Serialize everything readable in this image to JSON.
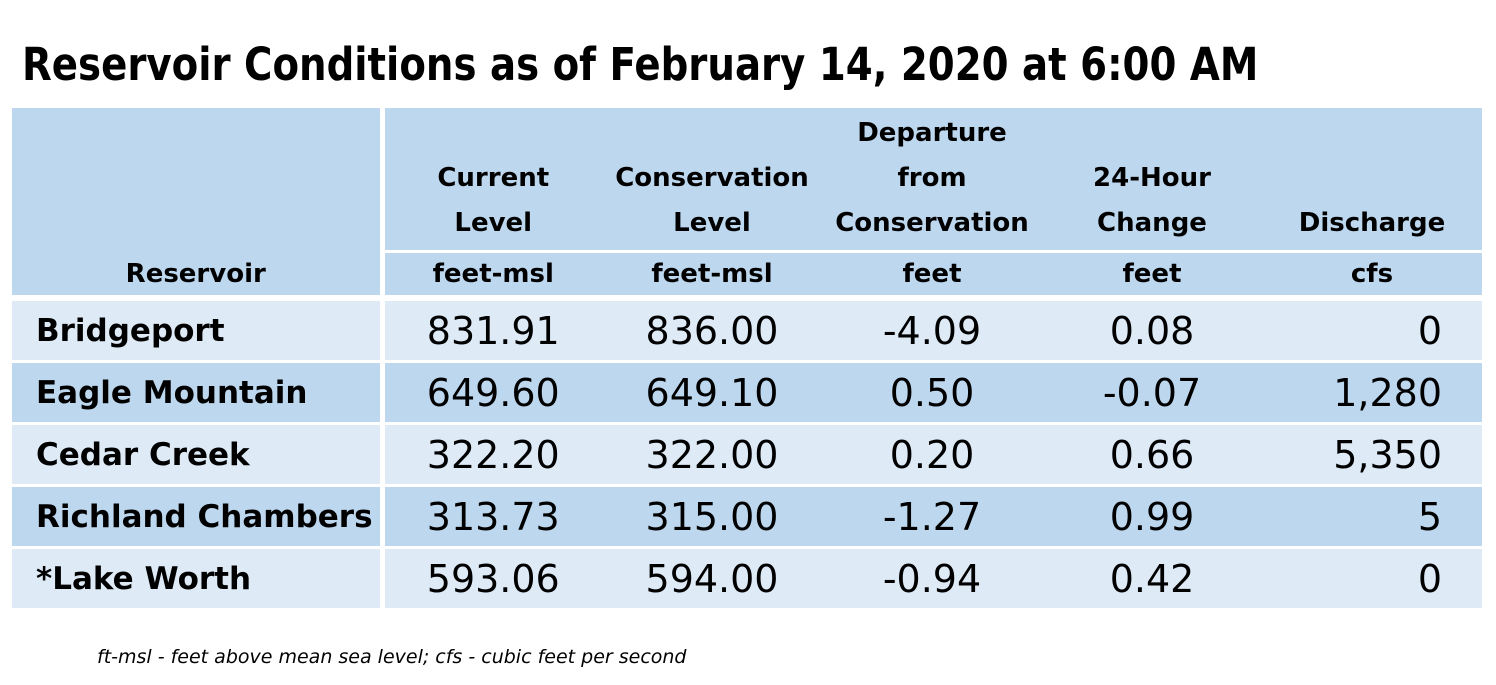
{
  "title": "Reservoir Conditions as of February 14, 2020 at 6:00 AM",
  "colors": {
    "header_bg": "#bdd7ee",
    "row_light": "#deebf7",
    "row_dark": "#bdd7ee"
  },
  "table": {
    "headers": {
      "reservoir": "Reservoir",
      "current_line1": "Current",
      "current_line2": "Level",
      "conservation_line1": "Conservation",
      "conservation_line2": "Level",
      "departure_line1": "Departure",
      "departure_line2": "from",
      "departure_line3": "Conservation",
      "change_line1": "24-Hour",
      "change_line2": "Change",
      "discharge": "Discharge"
    },
    "units": {
      "current": "feet-msl",
      "conservation": "feet-msl",
      "departure": "feet",
      "change": "feet",
      "discharge": "cfs"
    },
    "rows": [
      {
        "name": "Bridgeport",
        "current": "831.91",
        "conservation": "836.00",
        "departure": "-4.09",
        "change": "0.08",
        "discharge": "0"
      },
      {
        "name": "Eagle Mountain",
        "current": "649.60",
        "conservation": "649.10",
        "departure": "0.50",
        "change": "-0.07",
        "discharge": "1,280"
      },
      {
        "name": "Cedar Creek",
        "current": "322.20",
        "conservation": "322.00",
        "departure": "0.20",
        "change": "0.66",
        "discharge": "5,350"
      },
      {
        "name": "Richland Chambers",
        "current": "313.73",
        "conservation": "315.00",
        "departure": "-1.27",
        "change": "0.99",
        "discharge": "5"
      },
      {
        "name": "*Lake Worth",
        "current": "593.06",
        "conservation": "594.00",
        "departure": "-0.94",
        "change": "0.42",
        "discharge": "0"
      }
    ]
  },
  "footnote": "ft-msl - feet above mean sea level; cfs - cubic feet per second"
}
